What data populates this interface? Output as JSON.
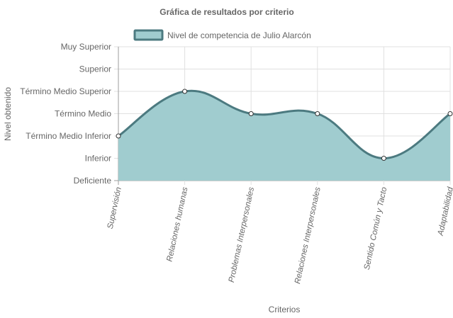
{
  "colors": {
    "fill": "#a0cccf",
    "stroke": "#4c7a80",
    "point_fill": "#ffffff",
    "point_stroke": "#333333"
  },
  "chart_data": {
    "type": "area",
    "title": "Gráfica de resultados por criterio",
    "xlabel": "Criterios",
    "ylabel": "Nivel obtenido",
    "categories": [
      "Supervisión",
      "Relaciones humanas",
      "Problemas Interpersonales",
      "Relaciones Interpersonales",
      "Sentido Común y Tacto",
      "Adaptabilidad"
    ],
    "y_levels": [
      "Deficiente",
      "Inferior",
      "Término Medio Inferior",
      "Término Medio",
      "Término Medio Superior",
      "Superior",
      "Muy Superior"
    ],
    "ylim": [
      0,
      6
    ],
    "legend_position": "top",
    "grid": true,
    "series": [
      {
        "name": "Nivel de competencia de Julio Alarcón",
        "values": [
          2,
          4,
          3,
          3,
          1,
          3
        ]
      }
    ]
  }
}
